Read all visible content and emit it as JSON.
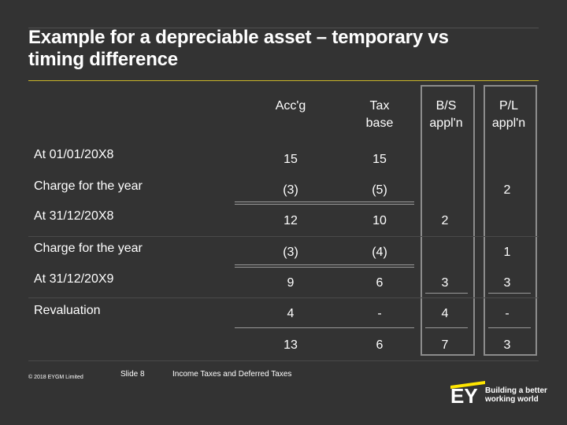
{
  "title": {
    "line1": "Example for a depreciable asset – temporary vs",
    "line2": "timing difference"
  },
  "headers": {
    "accg": "Acc'g",
    "tax_base_1": "Tax",
    "tax_base_2": "base",
    "bs_1": "B/S",
    "bs_2": "appl'n",
    "pl_1": "P/L",
    "pl_2": "appl'n"
  },
  "rows": [
    {
      "label": "At 01/01/20X8",
      "accg": "15",
      "tax": "15",
      "bs": "",
      "pl": ""
    },
    {
      "label": "Charge for the year",
      "accg": "(3)",
      "tax": "(5)",
      "bs": "",
      "pl": "2"
    },
    {
      "label": "At 31/12/20X8",
      "accg": "12",
      "tax": "10",
      "bs": "2",
      "pl": ""
    },
    {
      "label": "Charge for the year",
      "accg": "(3)",
      "tax": "(4)",
      "bs": "",
      "pl": "1"
    },
    {
      "label": "At 31/12/20X9",
      "accg": "9",
      "tax": "6",
      "bs": "3",
      "pl": "3"
    },
    {
      "label": "Revaluation",
      "accg": "4",
      "tax": "-",
      "bs": "4",
      "pl": "-"
    },
    {
      "label": "",
      "accg": "13",
      "tax": "6",
      "bs": "7",
      "pl": "3"
    }
  ],
  "footer": {
    "copyright": "© 2018 EYGM Limited",
    "slide": "Slide 8",
    "subject": "Income Taxes and Deferred Taxes"
  },
  "logo": {
    "mark": "EY",
    "tagline_1": "Building a better",
    "tagline_2": "working world"
  }
}
